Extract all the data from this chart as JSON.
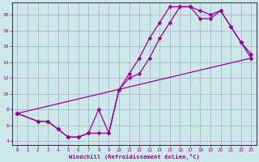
{
  "xlabel": "Windchill (Refroidissement éolien,°C)",
  "bg_color": "#cde8e8",
  "grid_color": "#aaaacc",
  "line_color": "#990099",
  "xlim": [
    -0.5,
    23.5
  ],
  "ylim": [
    3.5,
    21.5
  ],
  "yticks": [
    4,
    6,
    8,
    10,
    12,
    14,
    16,
    18,
    20
  ],
  "xticks": [
    0,
    1,
    2,
    3,
    4,
    5,
    6,
    7,
    8,
    9,
    10,
    11,
    12,
    13,
    14,
    15,
    16,
    17,
    18,
    19,
    20,
    21,
    22,
    23
  ],
  "line1_x": [
    0,
    23
  ],
  "line1_y": [
    7.5,
    14.5
  ],
  "line2_x": [
    0,
    2,
    3,
    4,
    5,
    6,
    7,
    8,
    9,
    10,
    11,
    12,
    13,
    14,
    15,
    16,
    17,
    18,
    19,
    20,
    21,
    22,
    23
  ],
  "line2_y": [
    7.5,
    6.5,
    6.5,
    5.5,
    4.5,
    4.5,
    5.0,
    5.0,
    5.0,
    10.5,
    12.5,
    14.5,
    17.0,
    19.0,
    21.0,
    21.0,
    21.0,
    20.5,
    20.0,
    20.5,
    18.5,
    16.5,
    15.0
  ],
  "line3_x": [
    0,
    2,
    3,
    4,
    5,
    6,
    7,
    8,
    9,
    10,
    11,
    12,
    13,
    14,
    15,
    16,
    17,
    18,
    19,
    20,
    21,
    22,
    23
  ],
  "line3_y": [
    7.5,
    6.5,
    6.5,
    5.5,
    4.5,
    4.5,
    5.0,
    8.0,
    5.0,
    10.5,
    12.0,
    12.5,
    14.5,
    17.0,
    19.0,
    21.0,
    21.0,
    19.5,
    19.5,
    20.5,
    18.5,
    16.5,
    14.5
  ],
  "marker_size": 2.5,
  "line_width": 0.9
}
